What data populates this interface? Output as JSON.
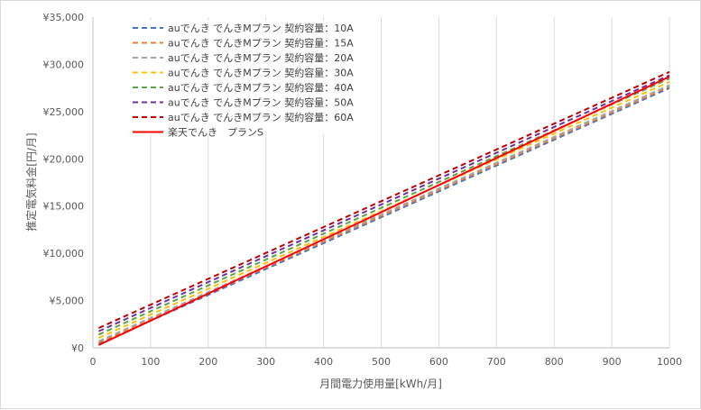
{
  "chart_data": {
    "type": "line",
    "xlabel": "月間電力使用量[kWh/月]",
    "ylabel": "推定電気料金[円/月]",
    "xlim": [
      0,
      1000
    ],
    "ylim": [
      0,
      35000
    ],
    "x_ticks": [
      "0",
      "100",
      "200",
      "300",
      "400",
      "500",
      "600",
      "700",
      "800",
      "900",
      "1000"
    ],
    "y_ticks": [
      "¥0",
      "¥5,000",
      "¥10,000",
      "¥15,000",
      "¥20,000",
      "¥25,000",
      "¥30,000",
      "¥35,000"
    ],
    "grid": "vertical",
    "legend_position": "top-left",
    "x": [
      10,
      1000
    ],
    "series": [
      {
        "name": "auでんき でんきMプラン 契約容量：10A",
        "color": "#4472c4",
        "dash": true,
        "values": [
          400,
          27500
        ]
      },
      {
        "name": "auでんき でんきMプラン 契約容量：15A",
        "color": "#ed7d31",
        "dash": true,
        "values": [
          560,
          27660
        ]
      },
      {
        "name": "auでんき でんきMプラン 契約容量：20A",
        "color": "#a5a5a5",
        "dash": true,
        "values": [
          700,
          27800
        ]
      },
      {
        "name": "auでんき でんきMプラン 契約容量：30A",
        "color": "#ffc000",
        "dash": true,
        "values": [
          1050,
          28150
        ]
      },
      {
        "name": "auでんき でんきMプラン 契約容量：40A",
        "color": "#5ba345",
        "dash": true,
        "values": [
          1400,
          28500
        ]
      },
      {
        "name": "auでんき でんきMプラン 契約容量：50A",
        "color": "#7030a0",
        "dash": true,
        "values": [
          1750,
          28850
        ]
      },
      {
        "name": "auでんき でんきMプラン 契約容量：60A",
        "color": "#c00000",
        "dash": true,
        "values": [
          2100,
          29200
        ]
      },
      {
        "name": "楽天でんき　プランS",
        "color": "#ff0000",
        "dash": false,
        "values": [
          300,
          28700
        ]
      }
    ]
  }
}
